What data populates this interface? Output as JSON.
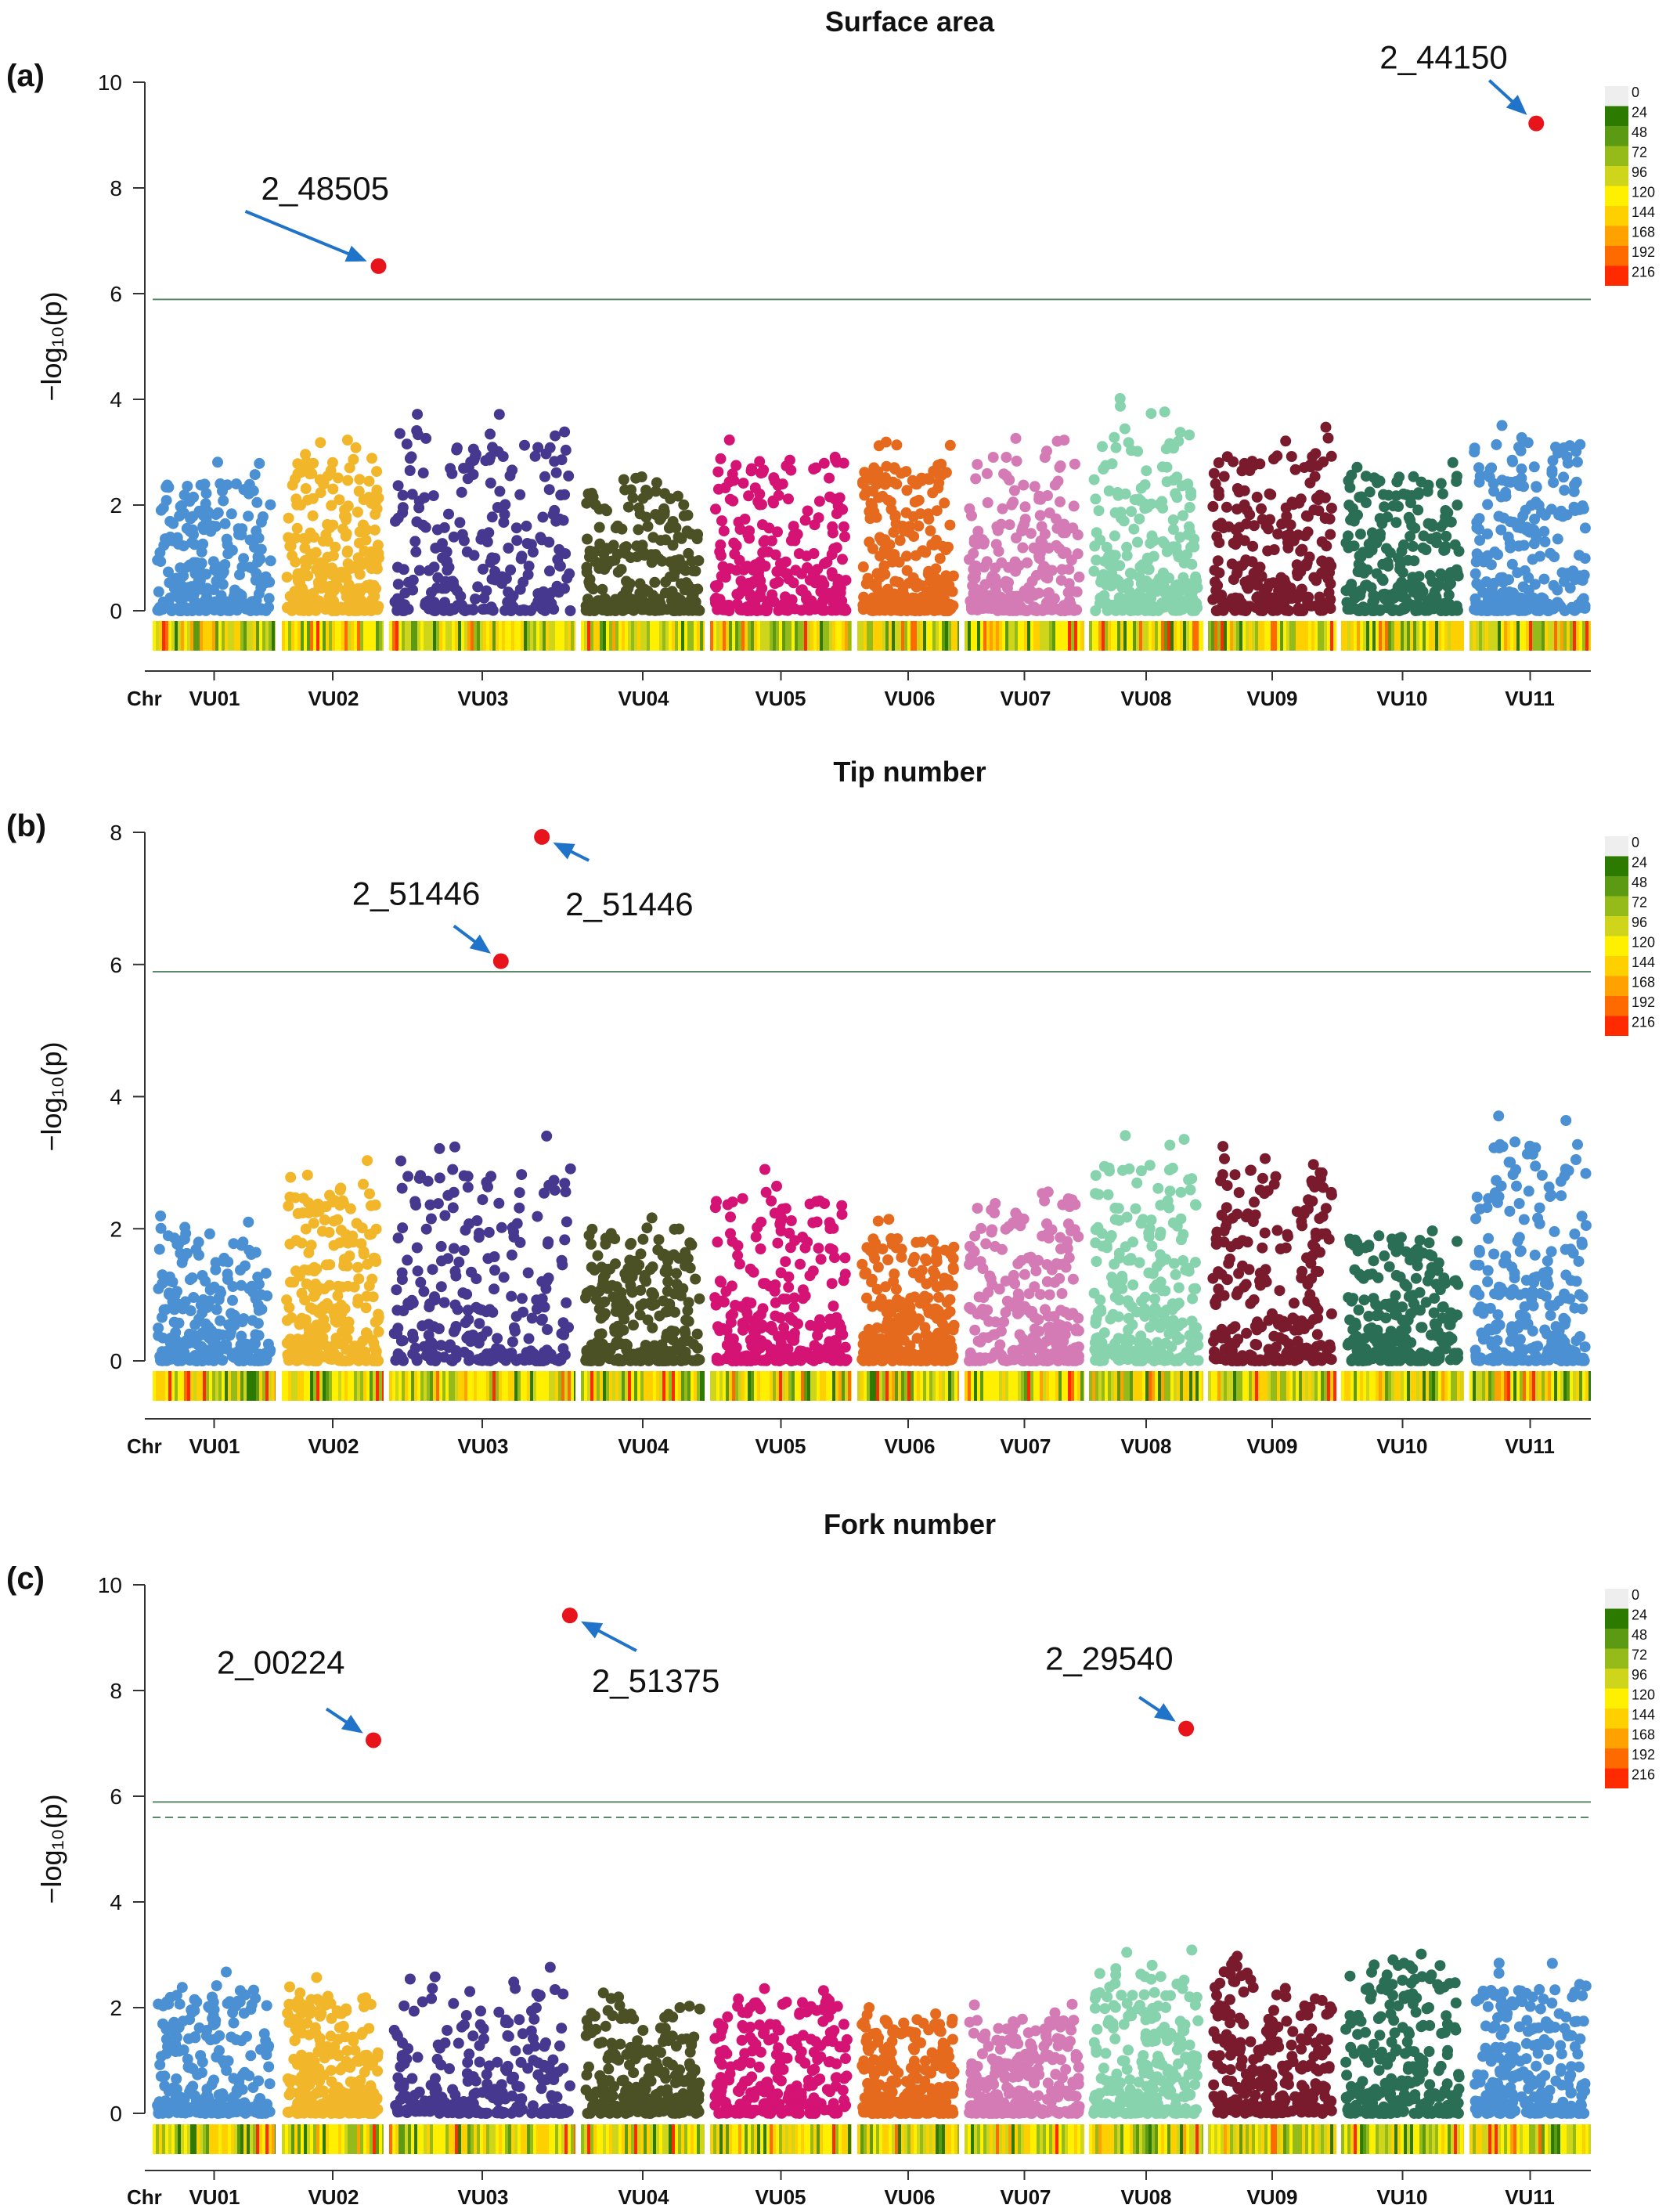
{
  "axes": {
    "ylabel": "−log₁₀(p)",
    "x_prefix": "Chr",
    "chromosomes": [
      "VU01",
      "VU02",
      "VU03",
      "VU04",
      "VU05",
      "VU06",
      "VU07",
      "VU08",
      "VU09",
      "VU10",
      "VU11"
    ],
    "chrom_colors": [
      "#4a90d2",
      "#f2b62a",
      "#46388f",
      "#4b5124",
      "#d41375",
      "#e56a1e",
      "#d47bb5",
      "#86d3ad",
      "#7a1a2d",
      "#2a6f55",
      "#4a90d2"
    ]
  },
  "density_legend": {
    "labels": [
      "0",
      "24",
      "48",
      "72",
      "96",
      "120",
      "144",
      "168",
      "192",
      "216"
    ],
    "colors": [
      "#eeeeee",
      "#2d7a00",
      "#5b9a12",
      "#95bb1a",
      "#cfd51b",
      "#fff000",
      "#ffd000",
      "#ffa100",
      "#ff6a00",
      "#ff2a00"
    ]
  },
  "highlight_color": "#e8141c",
  "arrow_color": "#1f73c9",
  "chart_data": [
    {
      "type": "scatter",
      "panel_label": "(a)",
      "title": "Surface area",
      "ylabel": "−log₁₀(p)",
      "ylim": [
        0,
        10
      ],
      "yticks": [
        0,
        2,
        4,
        6,
        8,
        10
      ],
      "threshold_solid": 5.89,
      "threshold_dashed": null,
      "chromosome_peaks": [
        2.9,
        3.4,
        3.95,
        2.7,
        3.4,
        3.3,
        3.5,
        4.05,
        3.55,
        3.0,
        3.75
      ],
      "significant_snps": [
        {
          "label": "2_48505",
          "chromosome": "VU02",
          "position": 0.95,
          "value": 6.52
        },
        {
          "label": "2_44150",
          "chromosome": "VU11",
          "position": 0.55,
          "value": 9.22
        }
      ]
    },
    {
      "type": "scatter",
      "panel_label": "(b)",
      "title": "Tip number",
      "ylabel": "−log₁₀(p)",
      "ylim": [
        0,
        8
      ],
      "yticks": [
        0,
        2,
        4,
        6,
        8
      ],
      "threshold_solid": 5.89,
      "threshold_dashed": null,
      "chromosome_peaks": [
        2.3,
        3.2,
        3.5,
        2.4,
        2.9,
        2.2,
        2.85,
        3.5,
        3.4,
        2.25,
        3.9
      ],
      "significant_snps": [
        {
          "label": "2_51446",
          "chromosome": "VU03",
          "position": 0.6,
          "value": 6.05
        },
        {
          "label": "2_51446",
          "chromosome": "VU03",
          "position": 0.82,
          "value": 7.93
        }
      ]
    },
    {
      "type": "scatter",
      "panel_label": "(c)",
      "title": "Fork number",
      "ylabel": "−log₁₀(p)",
      "ylim": [
        0,
        10
      ],
      "yticks": [
        0,
        2,
        4,
        6,
        8,
        10
      ],
      "threshold_solid": 5.89,
      "threshold_dashed": 5.6,
      "chromosome_peaks": [
        2.8,
        2.6,
        2.85,
        2.4,
        2.55,
        2.1,
        2.1,
        3.2,
        3.25,
        3.35,
        2.9
      ],
      "significant_snps": [
        {
          "label": "2_00224",
          "chromosome": "VU02",
          "position": 0.9,
          "value": 7.06
        },
        {
          "label": "2_51375",
          "chromosome": "VU03",
          "position": 0.97,
          "value": 9.42
        },
        {
          "label": "2_29540",
          "chromosome": "VU08",
          "position": 0.85,
          "value": 7.28
        }
      ]
    }
  ]
}
